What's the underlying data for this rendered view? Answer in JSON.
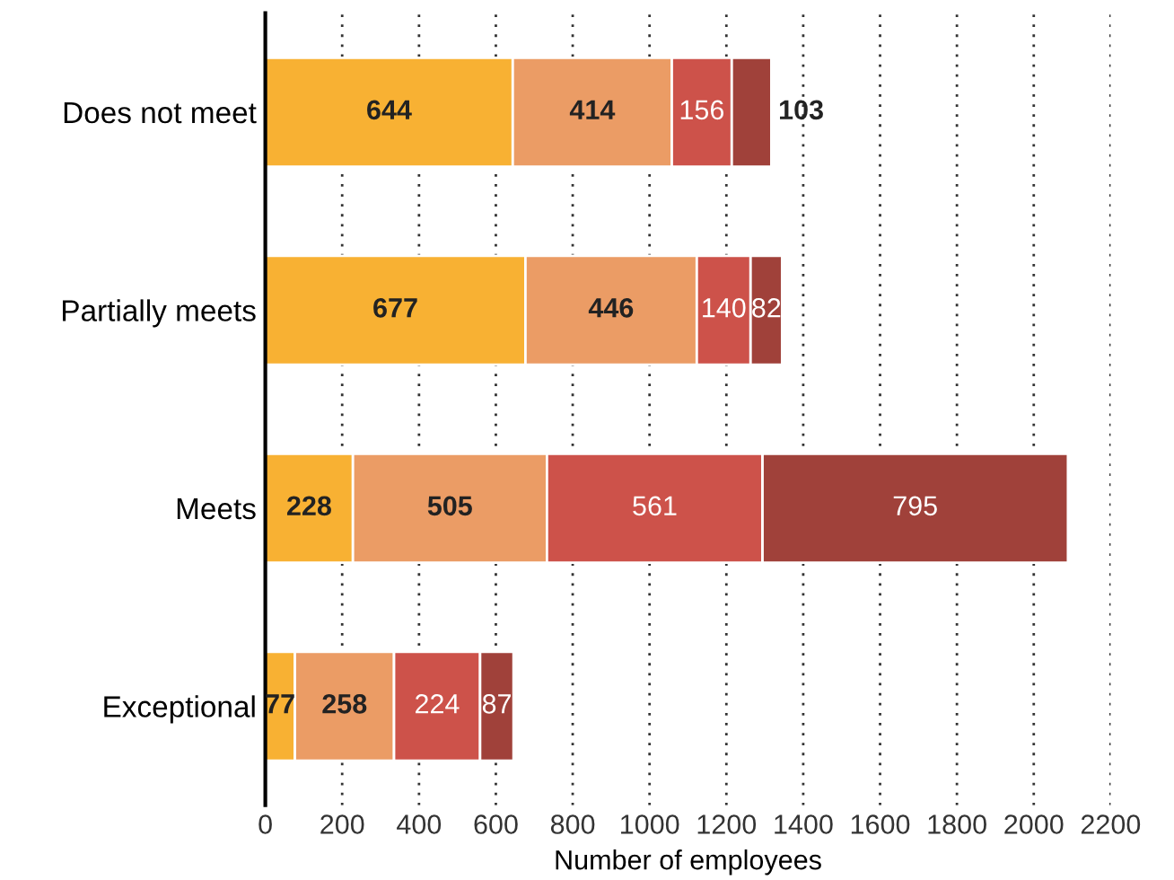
{
  "chart_data": {
    "type": "bar",
    "orientation": "horizontal",
    "stacked": true,
    "xlabel": "Number of employees",
    "categories": [
      "Does not meet",
      "Partially meets",
      "Meets",
      "Exceptional"
    ],
    "series": [
      {
        "color": "#f8b133",
        "values": [
          644,
          677,
          228,
          77
        ]
      },
      {
        "color": "#eb9c65",
        "values": [
          414,
          446,
          505,
          258
        ]
      },
      {
        "color": "#cd524a",
        "values": [
          156,
          140,
          561,
          224
        ]
      },
      {
        "color": "#a0413a",
        "values": [
          103,
          82,
          795,
          87
        ]
      }
    ],
    "xlim": [
      0,
      2200
    ],
    "xticks": [
      0,
      200,
      400,
      600,
      800,
      1000,
      1200,
      1400,
      1600,
      1800,
      2000,
      2200
    ],
    "grid": "x",
    "data_labels": true,
    "legend": false
  }
}
